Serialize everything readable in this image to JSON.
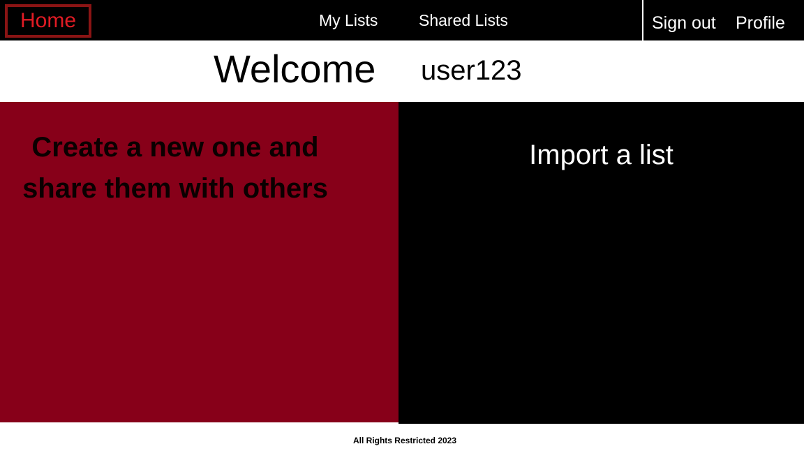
{
  "nav": {
    "home_label": "Home",
    "my_lists_label": "My Lists",
    "shared_lists_label": "Shared Lists",
    "sign_out_label": "Sign out",
    "profile_label": "Profile"
  },
  "welcome": {
    "title": "Welcome",
    "username": "user123"
  },
  "panels": {
    "create_text": "Create a new one and share them with others",
    "import_text": "Import a list"
  },
  "footer": {
    "text": "All Rights Restricted  2023"
  },
  "colors": {
    "nav_background": "#000000",
    "home_text": "#e01b24",
    "home_border": "#8a1414",
    "create_panel": "#870019",
    "import_panel": "#000000"
  }
}
